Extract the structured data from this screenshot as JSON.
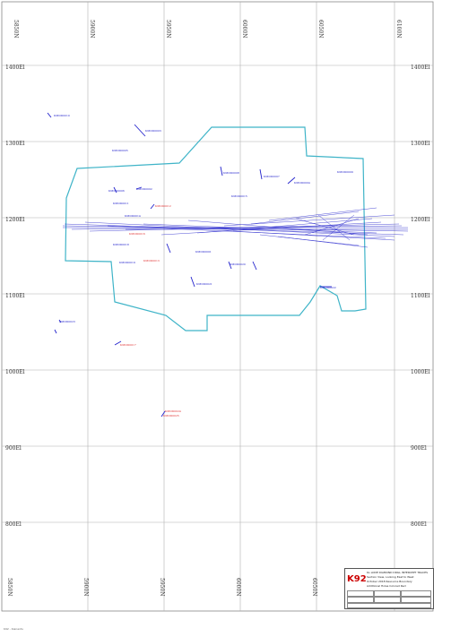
{
  "map": {
    "easting_labels": [
      "5850N",
      "5900N",
      "5950N",
      "6000N",
      "6050N",
      "6100N"
    ],
    "elevation_labels": [
      "1400El",
      "1300El",
      "1200El",
      "1100El",
      "1000El",
      "900El",
      "800El"
    ],
    "colors": {
      "grid": "#b0b0b0",
      "boundary": "#3fb4c8",
      "drillhole": "#2222cc",
      "drillhole_highlight": "#e03030"
    }
  },
  "drillholes": [
    {
      "label": "KMDD0010",
      "color": "blue"
    },
    {
      "label": "KMDD0003",
      "color": "blue"
    },
    {
      "label": "KMDD0005",
      "color": "blue"
    },
    {
      "label": "KMDD0008",
      "color": "blue"
    },
    {
      "label": "KMDD0007",
      "color": "blue"
    },
    {
      "label": "KMDD0009",
      "color": "blue"
    },
    {
      "label": "KMDD0004",
      "color": "blue"
    },
    {
      "label": "KMDD0002",
      "color": "blue"
    },
    {
      "label": "KMDD0006",
      "color": "blue"
    },
    {
      "label": "KMDD0012",
      "color": "red"
    },
    {
      "label": "KMDD0011",
      "color": "blue"
    },
    {
      "label": "KMDD0014",
      "color": "blue"
    },
    {
      "label": "KMDD0015",
      "color": "blue"
    },
    {
      "label": "KMDD0016",
      "color": "red"
    },
    {
      "label": "KMDD0018",
      "color": "blue"
    },
    {
      "label": "KMDD0013",
      "color": "red"
    },
    {
      "label": "KMDD0019",
      "color": "blue"
    },
    {
      "label": "KMDD0001",
      "color": "blue"
    },
    {
      "label": "KMDD0020",
      "color": "blue"
    },
    {
      "label": "KMDD0021",
      "color": "blue"
    },
    {
      "label": "KMDD0022",
      "color": "blue"
    },
    {
      "label": "KMDD0017",
      "color": "red"
    },
    {
      "label": "KMDD0023",
      "color": "blue"
    },
    {
      "label": "KMDD0024",
      "color": "red"
    },
    {
      "label": "KMDD0025",
      "color": "red"
    }
  ],
  "title_block": {
    "logo": "K92",
    "lines": [
      "KL LODE DIAMOND DRILL INTERCEPT TRACES",
      "Section View, Looking East to West",
      "October 2018 Resource Boundary",
      "Additional Holes Colored Red"
    ]
  },
  "footnote": "K92 - Kainantu"
}
